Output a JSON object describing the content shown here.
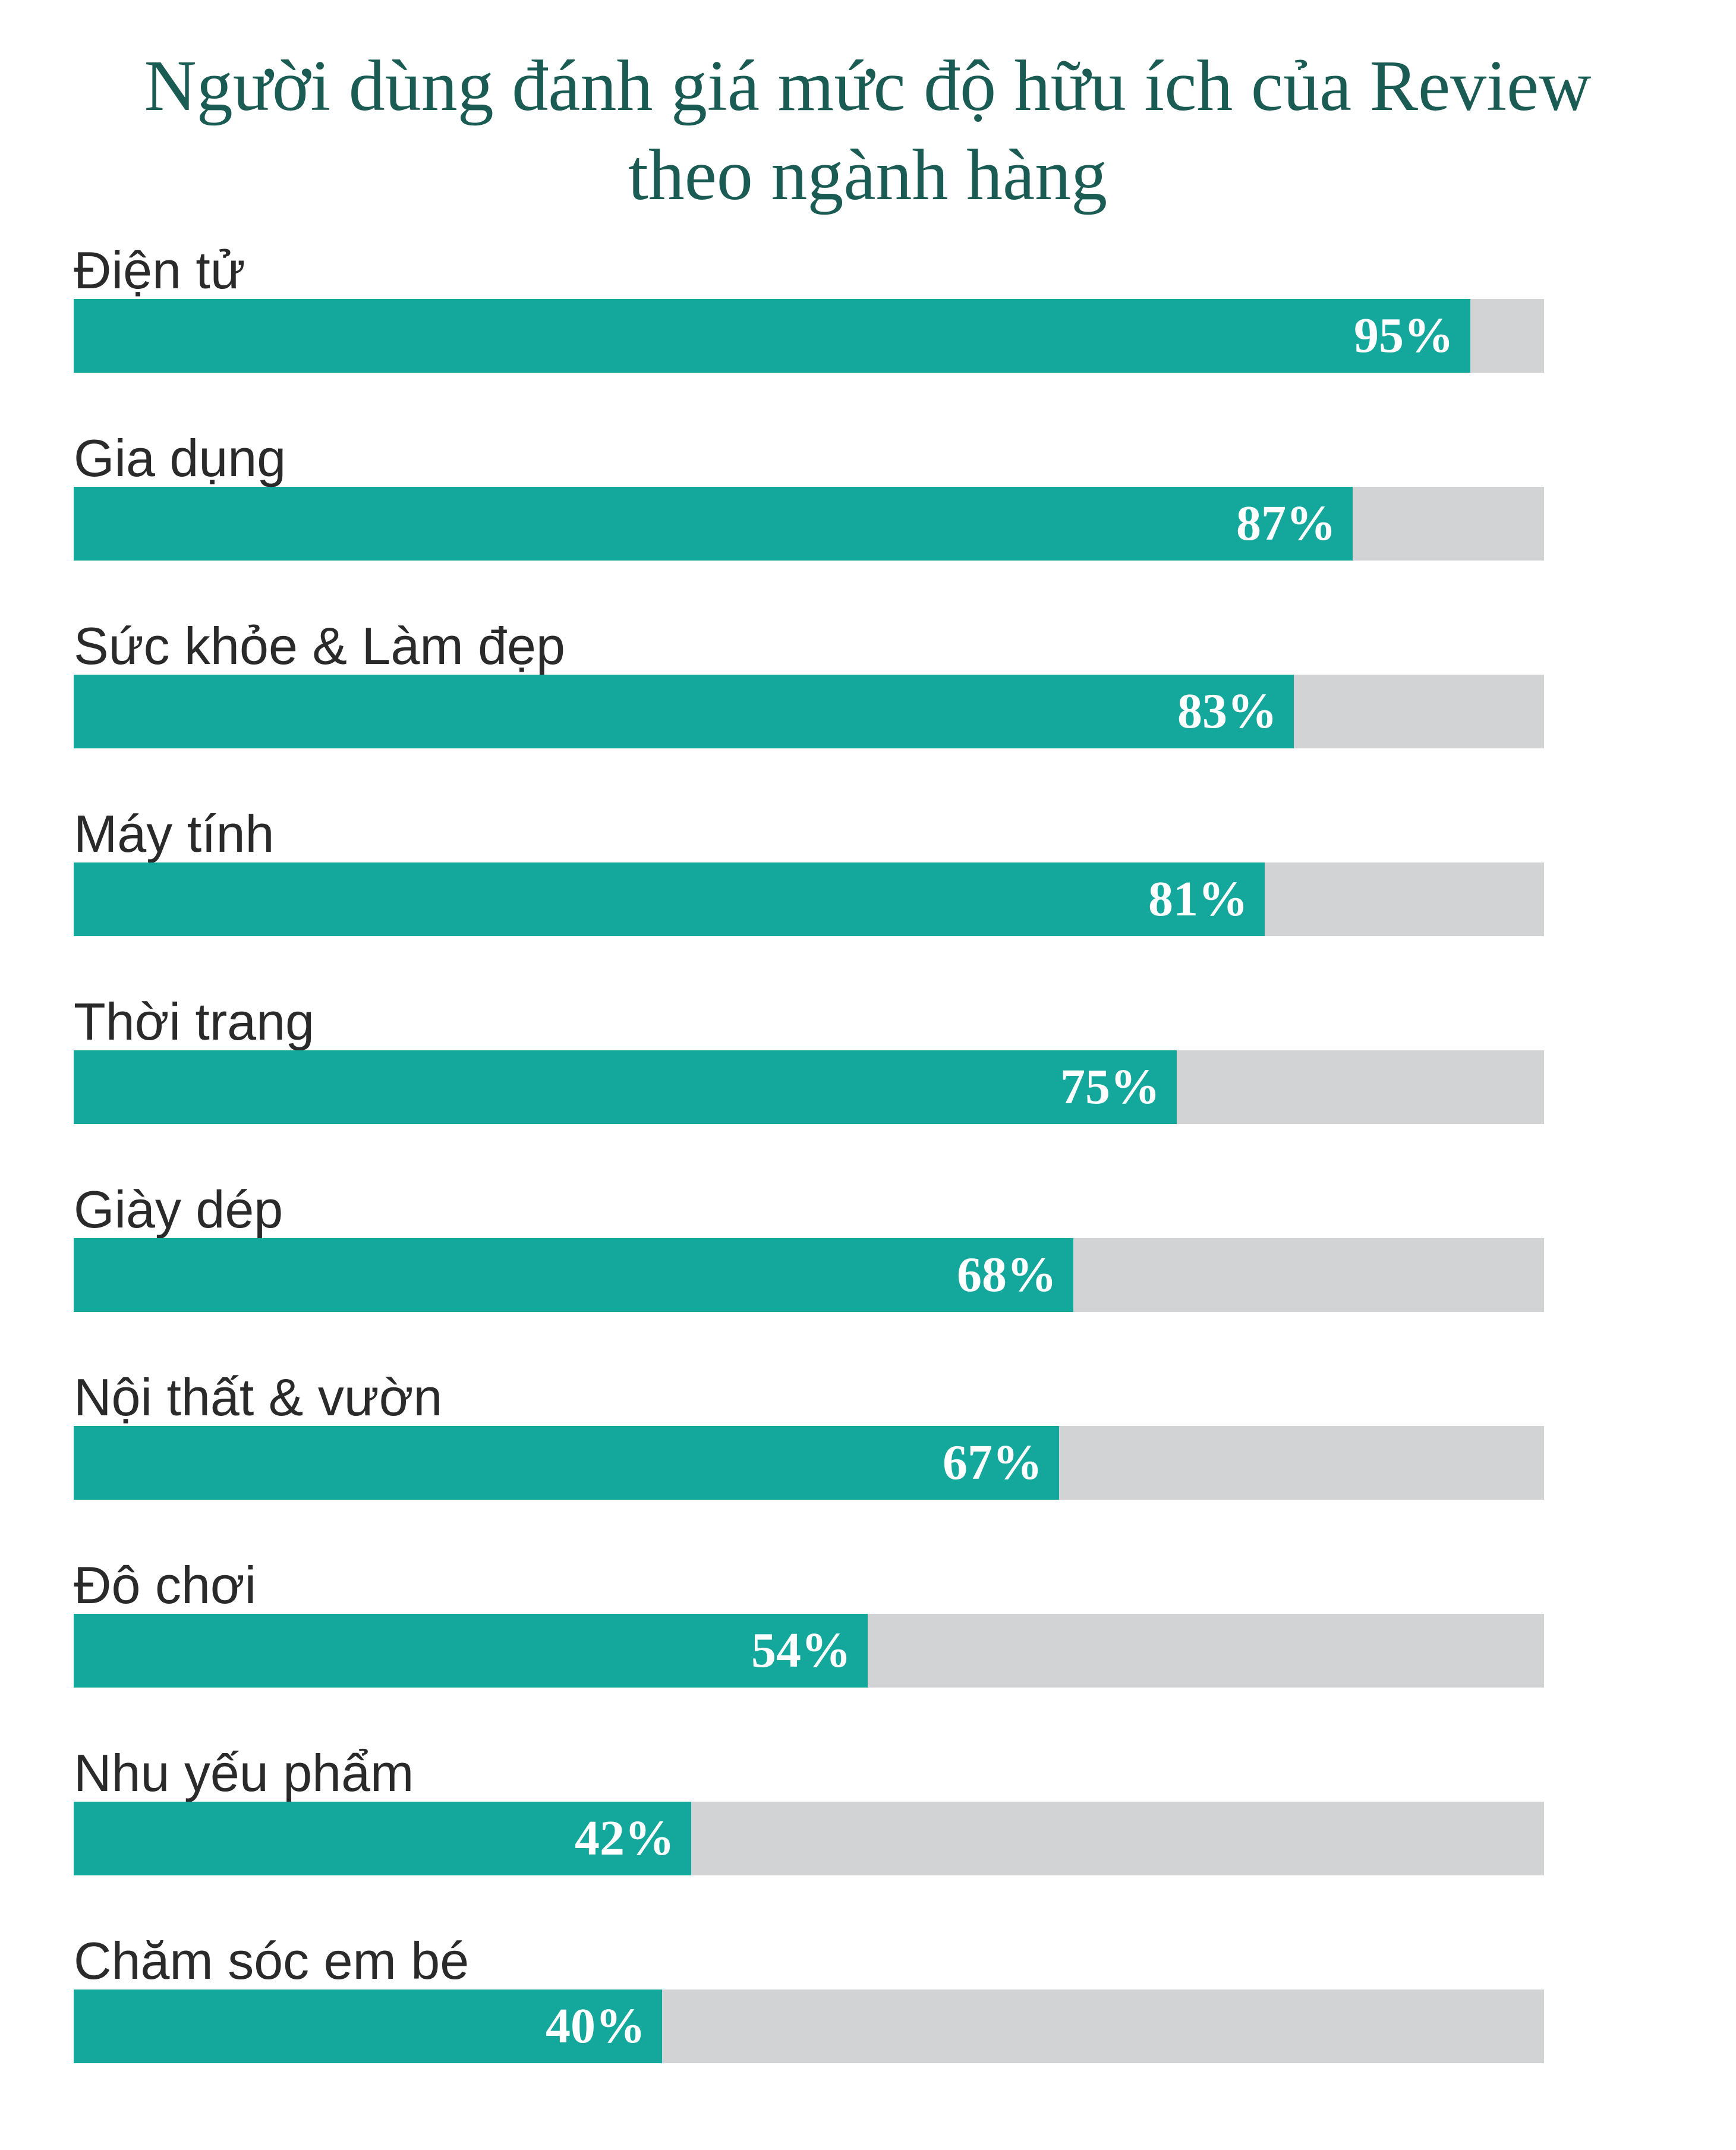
{
  "chart_data": {
    "type": "bar",
    "orientation": "horizontal",
    "title_lines": [
      "Người dùng đánh giá mức độ hữu ích của Review",
      "theo ngành hàng"
    ],
    "categories": [
      "Điện tử",
      "Gia dụng",
      "Sức khỏe & Làm đẹp",
      "Máy tính",
      "Thời trang",
      "Giày dép",
      "Nội thất & vườn",
      "Đô chơi",
      "Nhu yếu phẩm",
      "Chăm sóc em bé"
    ],
    "values": [
      95,
      87,
      83,
      81,
      75,
      68,
      67,
      54,
      42,
      40
    ],
    "value_labels": [
      "95%",
      "87%",
      "83%",
      "81%",
      "75%",
      "68%",
      "67%",
      "54%",
      "42%",
      "40%"
    ],
    "unit": "%",
    "xlim": [
      0,
      100
    ],
    "grid": false,
    "legend": "none",
    "colors": {
      "bar": "#14a79c",
      "track": "#d1d3d4",
      "title": "#1a5b53",
      "label": "#2a2a2a",
      "value_text": "#ffffff"
    }
  }
}
